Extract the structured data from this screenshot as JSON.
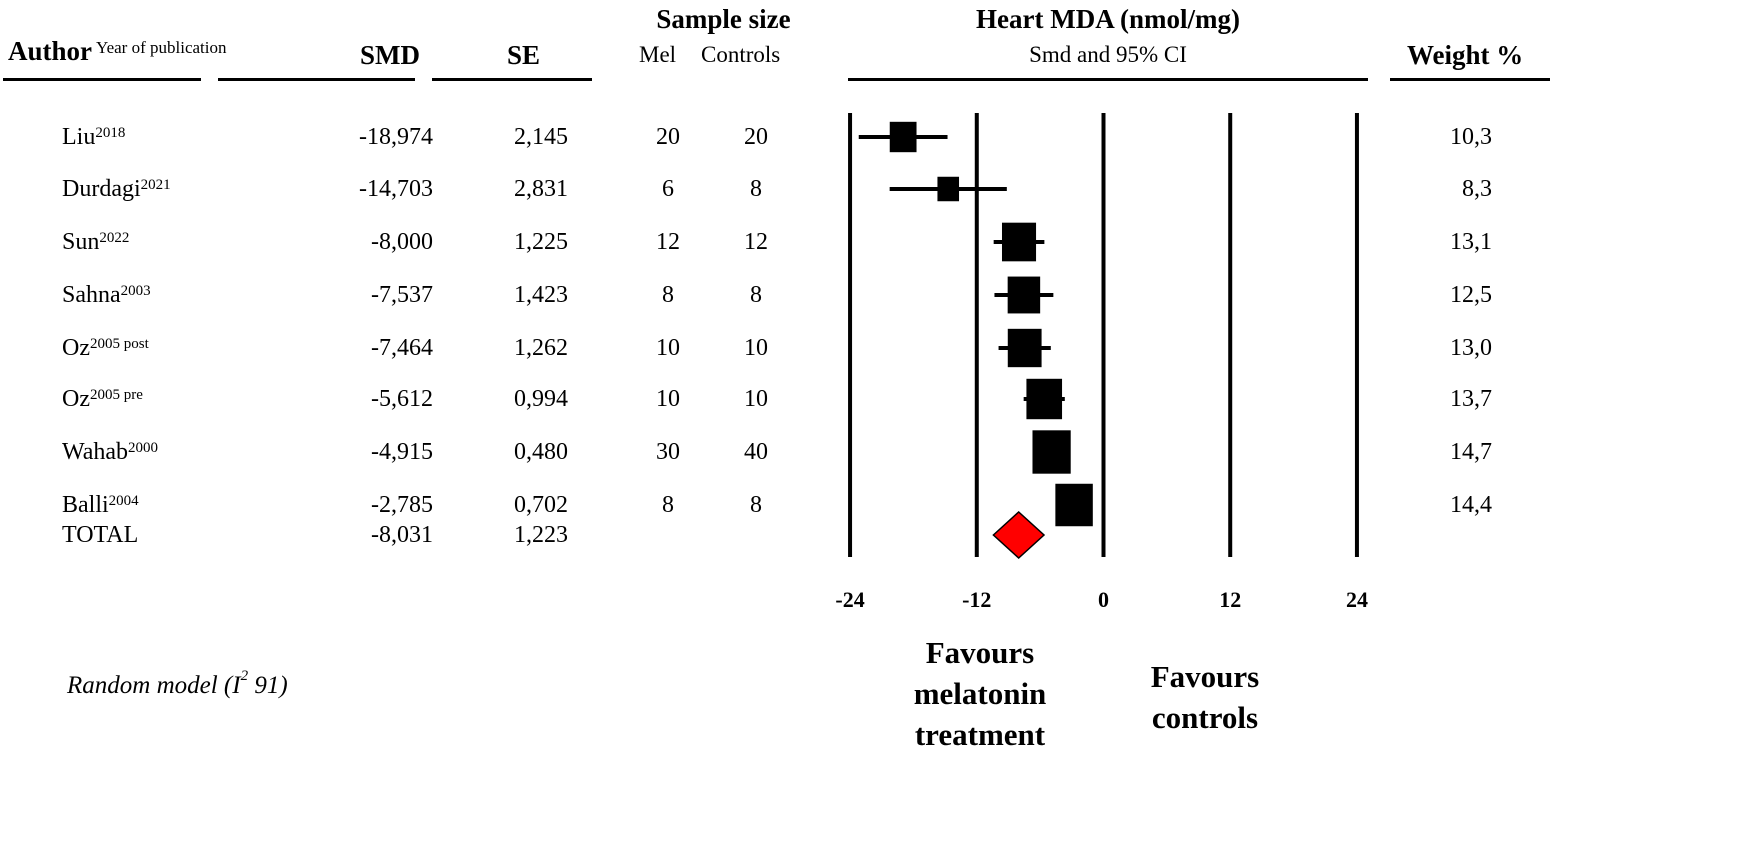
{
  "header": {
    "author": "Author",
    "year_note": "Year of publication",
    "smd": "SMD",
    "se": "SE",
    "sample_size": "Sample size",
    "mel": "Mel",
    "controls": "Controls",
    "weight": "Weight %"
  },
  "footer": {
    "model_prefix": "Random model (I",
    "model_sup": "2",
    "model_suffix": " 91)",
    "favours_left": [
      "Favours",
      "melatonin",
      "treatment"
    ],
    "favours_right": [
      "Favours",
      "controls"
    ]
  },
  "chart_data": {
    "type": "forest",
    "title": "Heart MDA (nmol/mg)",
    "subtitle": "Smd and 95% CI",
    "xlim": [
      -24,
      24
    ],
    "xticks": [
      "-24",
      "-12",
      "0",
      "12",
      "24"
    ],
    "xtick_values": [
      -24,
      -12,
      0,
      12,
      24
    ],
    "studies": [
      {
        "author": "Liu",
        "year": "2018",
        "smd_label": "-18,974",
        "se_label": "2,145",
        "smd": -18.974,
        "se": 2.145,
        "mel": "20",
        "controls": "20",
        "weight_label": "10,3",
        "weight": 10.3
      },
      {
        "author": "Durdagi",
        "year": "2021",
        "smd_label": "-14,703",
        "se_label": "2,831",
        "smd": -14.703,
        "se": 2.831,
        "mel": "6",
        "controls": "8",
        "weight_label": "8,3",
        "weight": 8.3
      },
      {
        "author": "Sun",
        "year": "2022",
        "smd_label": "-8,000",
        "se_label": "1,225",
        "smd": -8.0,
        "se": 1.225,
        "mel": "12",
        "controls": "12",
        "weight_label": "13,1",
        "weight": 13.1
      },
      {
        "author": "Sahna",
        "year": "2003",
        "smd_label": "-7,537",
        "se_label": "1,423",
        "smd": -7.537,
        "se": 1.423,
        "mel": "8",
        "controls": "8",
        "weight_label": "12,5",
        "weight": 12.5
      },
      {
        "author": "Oz",
        "year": "2005 post",
        "smd_label": "-7,464",
        "se_label": "1,262",
        "smd": -7.464,
        "se": 1.262,
        "mel": "10",
        "controls": "10",
        "weight_label": "13,0",
        "weight": 13.0
      },
      {
        "author": "Oz",
        "year": "2005 pre",
        "smd_label": "-5,612",
        "se_label": "0,994",
        "smd": -5.612,
        "se": 0.994,
        "mel": "10",
        "controls": "10",
        "weight_label": "13,7",
        "weight": 13.7
      },
      {
        "author": "Wahab",
        "year": "2000",
        "smd_label": "-4,915",
        "se_label": "0,480",
        "smd": -4.915,
        "se": 0.48,
        "mel": "30",
        "controls": "40",
        "weight_label": "14,7",
        "weight": 14.7
      },
      {
        "author": "Balli",
        "year": "2004",
        "smd_label": "-2,785",
        "se_label": "0,702",
        "smd": -2.785,
        "se": 0.702,
        "mel": "8",
        "controls": "8",
        "weight_label": "14,4",
        "weight": 14.4
      }
    ],
    "total": {
      "label": "TOTAL",
      "smd_label": "-8,031",
      "se_label": "1,223",
      "smd": -8.031,
      "se": 1.223
    },
    "colors": {
      "study": "#000000",
      "total": "#ff0000"
    }
  }
}
